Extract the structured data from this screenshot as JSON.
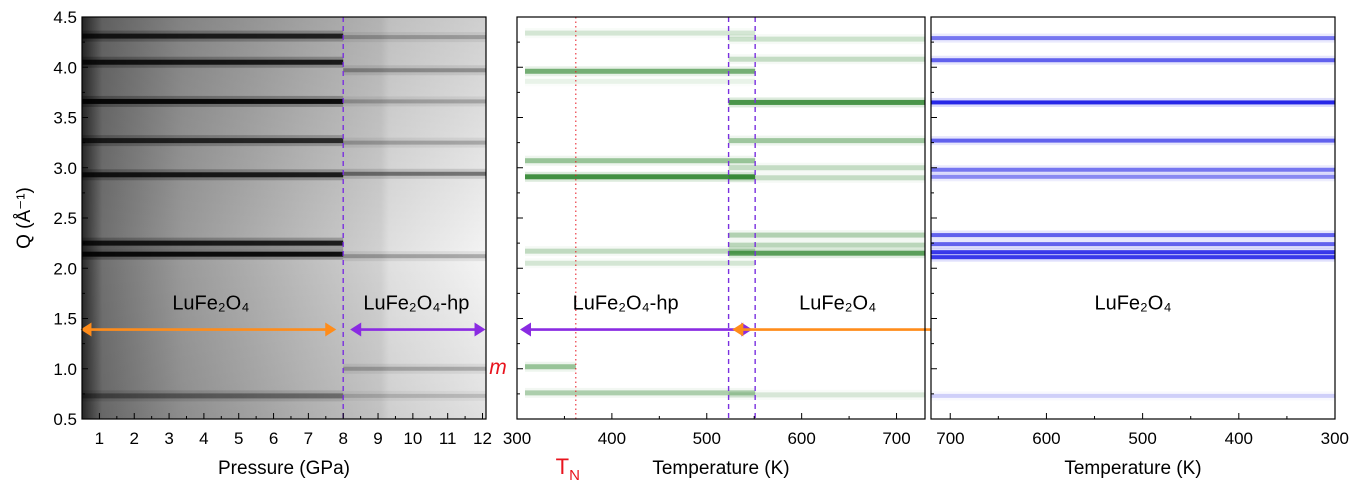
{
  "colors": {
    "orange": "#ff8c1a",
    "purple": "#8a2be2",
    "violet_dash": "#7a2fe0",
    "green": "#1a7a1a",
    "blue": "#1414e6",
    "red": "#e8141e"
  },
  "chart_data": [
    {
      "type": "heatmap",
      "colormap": "grayscale",
      "xlabel": "Pressure (GPa)",
      "ylabel": "Q (Å⁻¹)",
      "xlim": [
        0.5,
        12.1
      ],
      "ylim": [
        0.5,
        4.5
      ],
      "x_ticks": [
        "1",
        "2",
        "3",
        "4",
        "5",
        "6",
        "7",
        "8",
        "9",
        "10",
        "11",
        "12"
      ],
      "y_ticks": [
        "0.5",
        "1.0",
        "1.5",
        "2.0",
        "2.5",
        "3.0",
        "3.5",
        "4.0",
        "4.5"
      ],
      "transition_line_x": 8.0,
      "phase_labels": [
        {
          "text": "LuFe₂O₄",
          "x_range": [
            0.6,
            7.8
          ]
        },
        {
          "text": "LuFe₂O₄-hp",
          "x_range": [
            8.2,
            12.0
          ]
        }
      ],
      "arrow_y": 1.39,
      "bands_low_phase": [
        {
          "q": 4.31,
          "intensity": 0.85
        },
        {
          "q": 4.05,
          "intensity": 0.9
        },
        {
          "q": 3.66,
          "intensity": 1.0
        },
        {
          "q": 3.27,
          "intensity": 0.8
        },
        {
          "q": 2.93,
          "intensity": 0.9
        },
        {
          "q": 2.25,
          "intensity": 0.9
        },
        {
          "q": 2.14,
          "intensity": 1.0
        },
        {
          "q": 0.73,
          "intensity": 0.4
        }
      ],
      "bands_high_phase": [
        {
          "q": 4.3,
          "intensity": 0.3
        },
        {
          "q": 3.97,
          "intensity": 0.4
        },
        {
          "q": 3.66,
          "intensity": 0.3
        },
        {
          "q": 3.25,
          "intensity": 0.3
        },
        {
          "q": 2.94,
          "intensity": 0.6
        },
        {
          "q": 2.12,
          "intensity": 0.35
        },
        {
          "q": 1.0,
          "intensity": 0.3
        },
        {
          "q": 0.73,
          "intensity": 0.2
        }
      ]
    },
    {
      "type": "heatmap",
      "colormap": "green",
      "xlabel": "Temperature (K)",
      "xlim": [
        300,
        730
      ],
      "ylim": [
        0.5,
        4.5
      ],
      "x_ticks": [
        "300",
        "400",
        "500",
        "600",
        "700"
      ],
      "x_tick_values": [
        300,
        400,
        500,
        600,
        700
      ],
      "tn_line_x": 362,
      "tn_label": "T",
      "tn_sub": "N",
      "m_label": "m",
      "transition_lines_x": [
        523,
        551
      ],
      "phase_labels": [
        {
          "text": "LuFe₂O₄-hp",
          "x_range": [
            302,
            548
          ]
        },
        {
          "text": "LuFe₂O₄",
          "x_range": [
            548,
            728
          ]
        }
      ],
      "arrow_y": 1.39,
      "bands_low_phase": [
        {
          "q": 4.34,
          "intensity": 0.2
        },
        {
          "q": 3.96,
          "intensity": 0.7
        },
        {
          "q": 3.86,
          "intensity": 0.1
        },
        {
          "q": 3.07,
          "intensity": 0.5
        },
        {
          "q": 2.91,
          "intensity": 1.0
        },
        {
          "q": 2.17,
          "intensity": 0.3
        },
        {
          "q": 2.05,
          "intensity": 0.2
        },
        {
          "q": 1.02,
          "intensity": 0.5
        },
        {
          "q": 0.76,
          "intensity": 0.4
        }
      ],
      "bands_high_phase": [
        {
          "q": 4.28,
          "intensity": 0.25
        },
        {
          "q": 4.08,
          "intensity": 0.3
        },
        {
          "q": 3.65,
          "intensity": 1.0
        },
        {
          "q": 3.27,
          "intensity": 0.5
        },
        {
          "q": 3.0,
          "intensity": 0.3
        },
        {
          "q": 2.9,
          "intensity": 0.3
        },
        {
          "q": 2.33,
          "intensity": 0.4
        },
        {
          "q": 2.23,
          "intensity": 0.35
        },
        {
          "q": 2.15,
          "intensity": 0.9
        },
        {
          "q": 0.74,
          "intensity": 0.2
        }
      ]
    },
    {
      "type": "heatmap",
      "colormap": "blue",
      "xlabel": "Temperature (K)",
      "xlim": [
        720,
        300
      ],
      "ylim": [
        0.5,
        4.5
      ],
      "x_ticks": [
        "700",
        "600",
        "500",
        "400",
        "300"
      ],
      "x_tick_values": [
        700,
        600,
        500,
        400,
        300
      ],
      "phase_labels": [
        {
          "text": "LuFe₂O₄",
          "x_range": [
            720,
            300
          ]
        }
      ],
      "arrow_y": 1.39,
      "bands": [
        {
          "q": 4.29,
          "intensity": 0.6
        },
        {
          "q": 4.07,
          "intensity": 0.7
        },
        {
          "q": 3.65,
          "intensity": 1.0
        },
        {
          "q": 3.27,
          "intensity": 0.7
        },
        {
          "q": 2.98,
          "intensity": 0.6
        },
        {
          "q": 2.91,
          "intensity": 0.5
        },
        {
          "q": 2.33,
          "intensity": 0.7
        },
        {
          "q": 2.24,
          "intensity": 0.7
        },
        {
          "q": 2.16,
          "intensity": 0.9
        },
        {
          "q": 2.11,
          "intensity": 0.9
        },
        {
          "q": 0.73,
          "intensity": 0.2
        }
      ]
    }
  ]
}
